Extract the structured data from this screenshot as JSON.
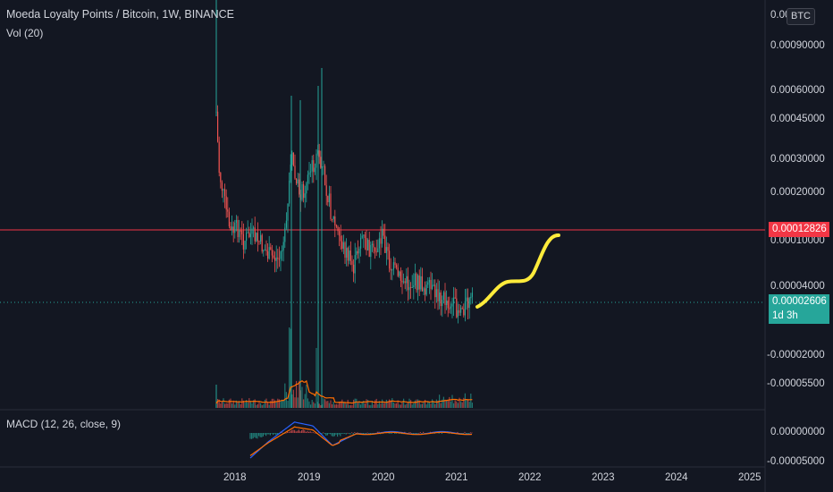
{
  "legend": {
    "title": "Moeda Loyalty Points / Bitcoin, 1W, BINANCE",
    "volume": "Vol (20)",
    "macd": "MACD (12, 26, close, 9)"
  },
  "price_axis": {
    "currency_badge": "BTC",
    "top_partial": "0.00",
    "labels": [
      "0.00090000",
      "0.00060000",
      "0.00045000",
      "0.00030000",
      "0.00020000",
      "0.00010000",
      "0.00004000",
      "-0.00002000",
      "-0.00005500"
    ],
    "macd_labels": [
      "0.00000000",
      "-0.00005000"
    ]
  },
  "markers": {
    "resistance_price": "0.00012826",
    "resistance_color": "#f23645",
    "current_price": "0.00002606",
    "countdown": "1d 3h",
    "current_color": "#26a69a"
  },
  "time_axis": [
    "2018",
    "2019",
    "2020",
    "2021",
    "2022",
    "2023",
    "2024",
    "2025"
  ],
  "colors": {
    "background": "#131722",
    "up": "#26a69a",
    "down": "#ef5350",
    "projection": "#ffeb3b",
    "macd_line": "#2962ff",
    "signal_line": "#ff6d00"
  },
  "chart_data": {
    "type": "line",
    "title": "Moeda Loyalty Points / Bitcoin, 1W, BINANCE",
    "x": [
      "2017-10",
      "2017-11",
      "2018-01",
      "2018-04",
      "2018-07",
      "2018-09",
      "2018-10",
      "2019-01",
      "2019-03",
      "2019-05",
      "2019-07",
      "2019-10",
      "2020-01",
      "2020-04",
      "2020-07",
      "2020-10",
      "2021-01",
      "2021-03"
    ],
    "series": [
      {
        "values": [
          0.00055,
          0.0003,
          0.00022,
          0.00012,
          0.0001,
          9e-05,
          0.0002,
          0.00025,
          0.00022,
          0.00011,
          9e-05,
          8e-05,
          6e-05,
          5e-05,
          4.5e-05,
          4e-05,
          2.8e-05,
          2.6e-05
        ]
      }
    ],
    "ylabel": "BTC",
    "log_scale": true
  }
}
